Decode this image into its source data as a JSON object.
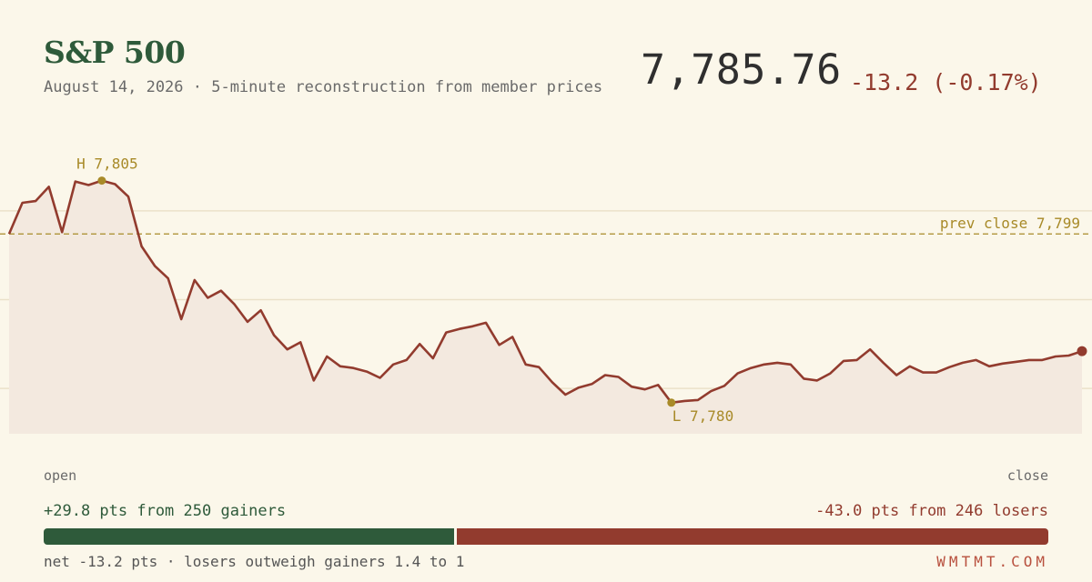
{
  "header": {
    "title": "S&P 500",
    "subtitle": "August 14, 2026 · 5-minute reconstruction from member prices",
    "price": "7,785.76",
    "change": "-13.2 (-0.17%)"
  },
  "axis": {
    "open_label": "open",
    "close_label": "close"
  },
  "breadth": {
    "gainers_text": "+29.8 pts from 250 gainers",
    "losers_text": "-43.0 pts from 246 losers",
    "gainers_pts": 29.8,
    "losers_pts": 43.0,
    "net_text": "net -13.2 pts · losers outweigh gainers 1.4 to 1"
  },
  "brand": "WMTMT.COM",
  "colors": {
    "line": "#923b2e",
    "gain": "#2e5a3a",
    "loss": "#923b2e",
    "annotation": "#a88a28"
  },
  "chart_data": {
    "type": "area",
    "x_unit": "5-minute intervals from open to close",
    "ylim": [
      7776.5,
      7811
    ],
    "gridlines": [
      7781.6,
      7791.6,
      7801.6
    ],
    "prev_close": {
      "value": 7799,
      "label": "prev close 7,799"
    },
    "high": {
      "index": 7,
      "value": 7805,
      "label": "H 7,805"
    },
    "low": {
      "index": 50,
      "value": 7780,
      "label": "L 7,780"
    },
    "values": [
      7799.0,
      7802.5,
      7802.7,
      7804.3,
      7799.2,
      7804.9,
      7804.5,
      7805.0,
      7804.6,
      7803.2,
      7797.6,
      7795.4,
      7794.0,
      7789.4,
      7793.8,
      7791.8,
      7792.6,
      7791.1,
      7789.1,
      7790.4,
      7787.6,
      7786.0,
      7786.8,
      7782.5,
      7785.2,
      7784.1,
      7783.9,
      7783.5,
      7782.8,
      7784.3,
      7784.8,
      7786.6,
      7785.0,
      7787.9,
      7788.3,
      7788.6,
      7789.0,
      7786.5,
      7787.4,
      7784.3,
      7784.0,
      7782.3,
      7780.9,
      7781.7,
      7782.1,
      7783.1,
      7782.9,
      7781.8,
      7781.5,
      7782.0,
      7780.0,
      7780.2,
      7780.3,
      7781.3,
      7781.9,
      7783.3,
      7783.9,
      7784.3,
      7784.5,
      7784.3,
      7782.7,
      7782.5,
      7783.3,
      7784.7,
      7784.8,
      7786.0,
      7784.5,
      7783.1,
      7784.1,
      7783.4,
      7783.4,
      7784.0,
      7784.5,
      7784.8,
      7784.1,
      7784.4,
      7784.6,
      7784.8,
      7784.8,
      7785.2,
      7785.3,
      7785.8
    ]
  }
}
